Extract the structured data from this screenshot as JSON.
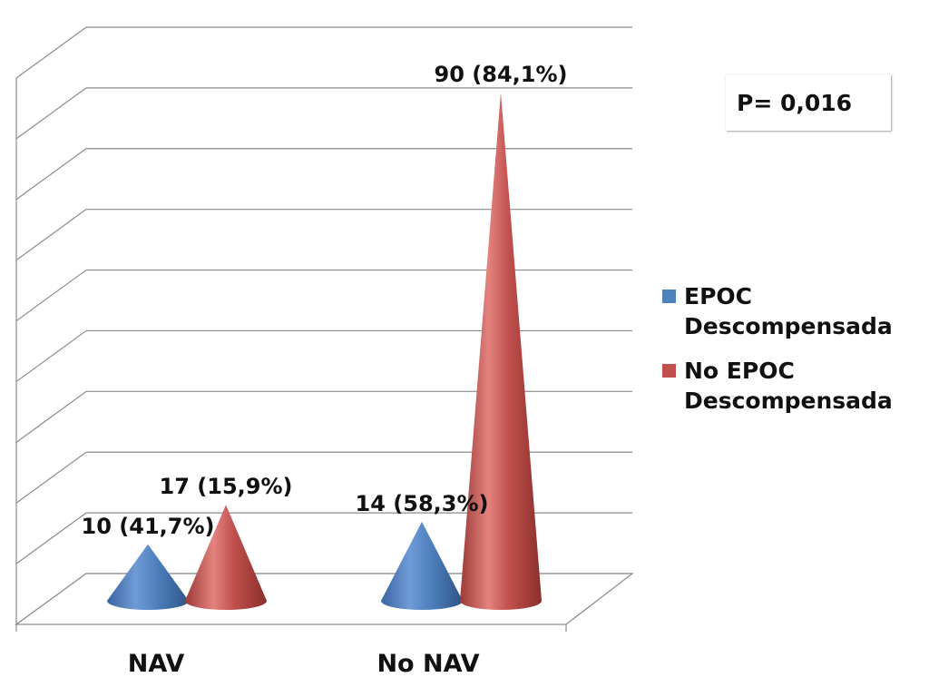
{
  "chart_data": {
    "type": "bar",
    "shape": "3d-cone",
    "categories": [
      "NAV",
      "No NAV"
    ],
    "series": [
      {
        "name": "EPOC\nDescompensada",
        "values": [
          10,
          14
        ],
        "percent_labels": [
          "10 (41,7%)",
          "14 (58,3%)"
        ],
        "percent": [
          41.7,
          58.3
        ],
        "color": "#4f81bd"
      },
      {
        "name": "No EPOC\nDescompensada",
        "values": [
          17,
          90
        ],
        "percent_labels": [
          "17 (15,9%)",
          "90 (84,1%)"
        ],
        "percent": [
          15.9,
          84.1
        ],
        "color": "#c0504d"
      }
    ],
    "ylim": [
      0,
      90
    ],
    "grid": true,
    "legend": "right",
    "annotation": "P= 0,016"
  }
}
